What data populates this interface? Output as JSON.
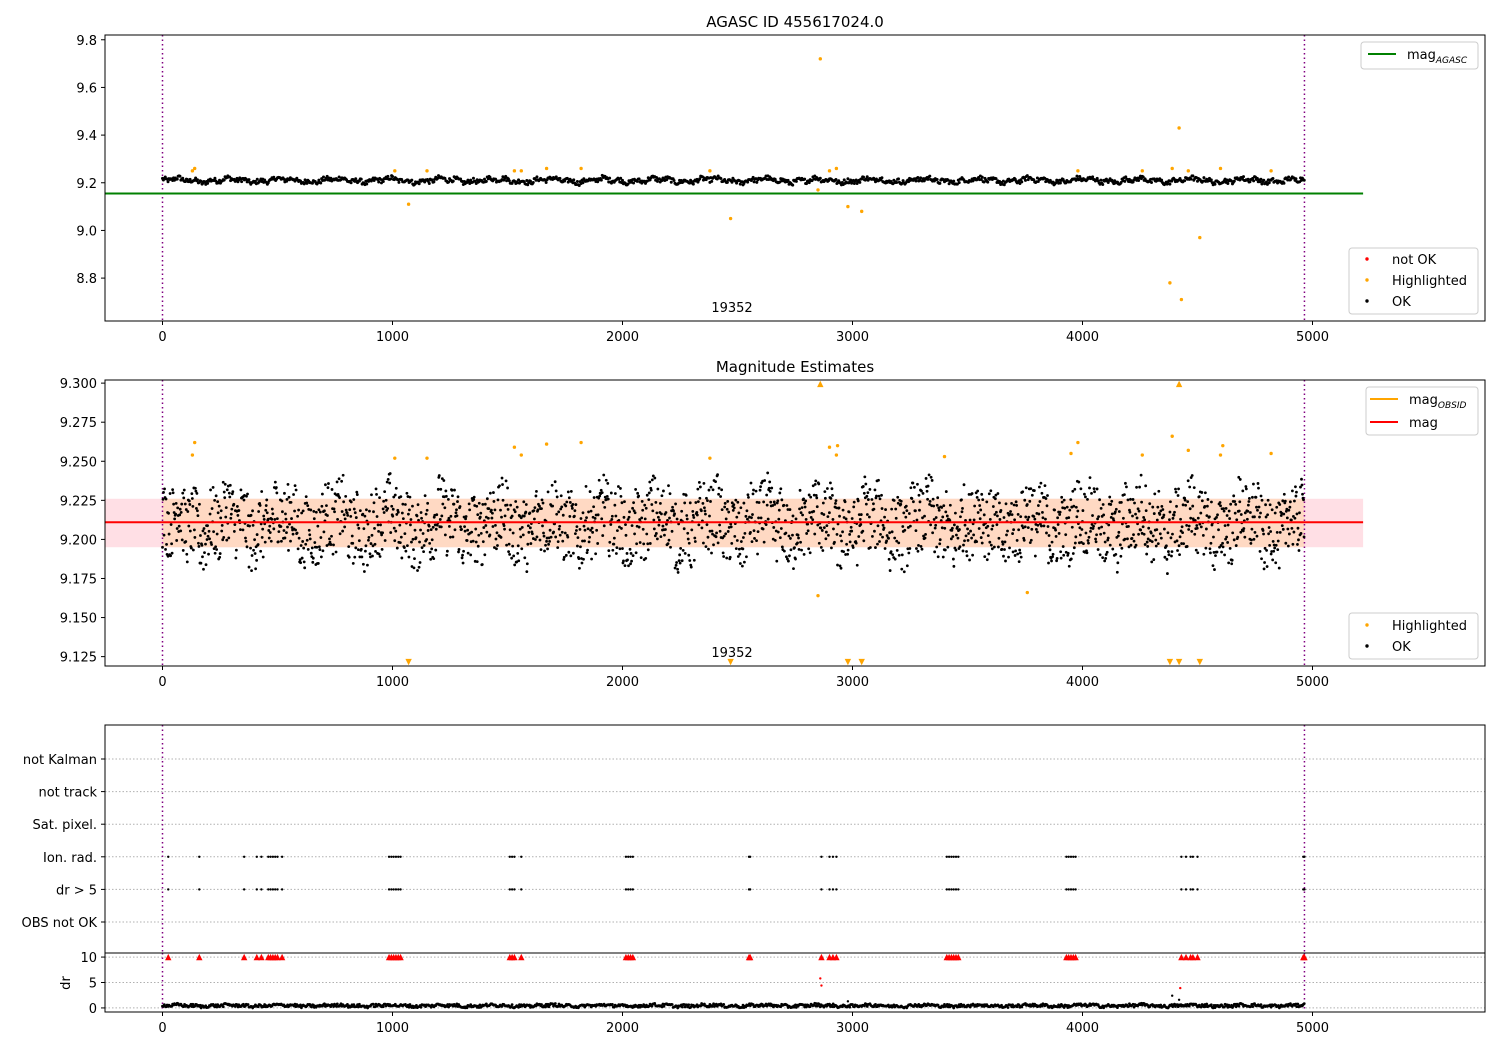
{
  "chart_data": [
    {
      "type": "scatter",
      "title": "AGASC ID 455617024.0",
      "annotation": "19352",
      "x_ticks": [
        0,
        1000,
        2000,
        3000,
        4000,
        5000
      ],
      "xlim": [
        -250,
        5750
      ],
      "ylim": [
        8.62,
        9.82
      ],
      "y_ticks": [
        "8.8",
        "9.0",
        "9.2",
        "9.4",
        "9.6",
        "9.8"
      ],
      "obs_bounds": [
        0,
        4965
      ],
      "reference_line": {
        "name": "mag",
        "subscript": "AGASC",
        "value": 9.155,
        "x_range": [
          -250,
          5220
        ],
        "color": "#008000"
      },
      "legend_top": [
        {
          "label": "mag",
          "subscript": "AGASC",
          "color": "#008000",
          "kind": "line"
        }
      ],
      "legend_bottom": [
        {
          "label": "not OK",
          "color": "#ff0000",
          "kind": "dot"
        },
        {
          "label": "Highlighted",
          "color": "#ffa500",
          "kind": "dot"
        },
        {
          "label": "OK",
          "color": "#000000",
          "kind": "dot"
        }
      ],
      "series": [
        {
          "name": "OK",
          "color": "#000000",
          "kind": "band_noise",
          "x_range": [
            0,
            4965
          ],
          "center": 9.21,
          "amplitude": 0.012,
          "jitter": 0.01
        },
        {
          "name": "Highlighted",
          "color": "#ffa500",
          "points": [
            [
              130,
              9.25
            ],
            [
              140,
              9.26
            ],
            [
              1010,
              9.25
            ],
            [
              1070,
              9.11
            ],
            [
              1150,
              9.25
            ],
            [
              1530,
              9.25
            ],
            [
              1560,
              9.25
            ],
            [
              1670,
              9.26
            ],
            [
              1820,
              9.26
            ],
            [
              2380,
              9.25
            ],
            [
              2470,
              9.05
            ],
            [
              2860,
              9.72
            ],
            [
              2850,
              9.17
            ],
            [
              2900,
              9.25
            ],
            [
              2930,
              9.26
            ],
            [
              2980,
              9.1
            ],
            [
              3040,
              9.08
            ],
            [
              3980,
              9.25
            ],
            [
              4260,
              9.25
            ],
            [
              4380,
              8.78
            ],
            [
              4390,
              9.26
            ],
            [
              4420,
              9.43
            ],
            [
              4430,
              8.71
            ],
            [
              4460,
              9.25
            ],
            [
              4510,
              8.97
            ],
            [
              4600,
              9.26
            ],
            [
              4820,
              9.25
            ]
          ]
        },
        {
          "name": "not OK",
          "color": "#ff0000",
          "points": []
        }
      ]
    },
    {
      "type": "scatter",
      "title": "Magnitude Estimates",
      "annotation": "19352",
      "x_ticks": [
        0,
        1000,
        2000,
        3000,
        4000,
        5000
      ],
      "xlim": [
        -250,
        5750
      ],
      "ylim": [
        9.119,
        9.302
      ],
      "y_ticks": [
        "9.125",
        "9.150",
        "9.175",
        "9.200",
        "9.225",
        "9.250",
        "9.275",
        "9.300"
      ],
      "obs_bounds": [
        0,
        4965
      ],
      "band": {
        "low": 9.195,
        "high": 9.226,
        "x_range": [
          -250,
          5220
        ]
      },
      "inner_band": {
        "low": 9.195,
        "high": 9.226,
        "x_range": [
          0,
          4965
        ]
      },
      "reference_line": {
        "name": "mag",
        "value": 9.211,
        "x_range": [
          -250,
          5220
        ],
        "color": "#ff0000"
      },
      "legend_top": [
        {
          "label": "mag",
          "subscript": "OBSID",
          "color": "#ffa500",
          "kind": "line"
        },
        {
          "label": "mag",
          "color": "#ff0000",
          "kind": "line"
        }
      ],
      "legend_bottom": [
        {
          "label": "Highlighted",
          "color": "#ffa500",
          "kind": "dot"
        },
        {
          "label": "OK",
          "color": "#000000",
          "kind": "dot"
        }
      ],
      "series": [
        {
          "name": "OK",
          "color": "#000000",
          "kind": "band_noise",
          "x_range": [
            0,
            4965
          ],
          "center": 9.21,
          "amplitude": 0.012,
          "jitter": 0.022
        },
        {
          "name": "Highlighted",
          "color": "#ffa500",
          "points": [
            [
              130,
              9.254
            ],
            [
              140,
              9.262
            ],
            [
              1010,
              9.252
            ],
            [
              1150,
              9.252
            ],
            [
              1530,
              9.259
            ],
            [
              1560,
              9.254
            ],
            [
              1670,
              9.261
            ],
            [
              1820,
              9.262
            ],
            [
              2380,
              9.252
            ],
            [
              2850,
              9.164
            ],
            [
              2900,
              9.259
            ],
            [
              2930,
              9.254
            ],
            [
              2935,
              9.26
            ],
            [
              3980,
              9.262
            ],
            [
              3950,
              9.255
            ],
            [
              3760,
              9.166
            ],
            [
              3400,
              9.253
            ],
            [
              4260,
              9.254
            ],
            [
              4390,
              9.266
            ],
            [
              4460,
              9.257
            ],
            [
              4600,
              9.254
            ],
            [
              4610,
              9.26
            ],
            [
              4820,
              9.255
            ]
          ]
        },
        {
          "name": "Highlighted (off-scale low)",
          "color": "#ffa500",
          "marker": "tri_down",
          "points": [
            [
              1070,
              9.1215
            ],
            [
              2470,
              9.1215
            ],
            [
              2980,
              9.1215
            ],
            [
              3040,
              9.1215
            ],
            [
              4380,
              9.1215
            ],
            [
              4420,
              9.1215
            ],
            [
              4510,
              9.1215
            ]
          ]
        },
        {
          "name": "Highlighted (off-scale high)",
          "color": "#ffa500",
          "marker": "tri_up",
          "points": [
            [
              2860,
              9.2995
            ],
            [
              4420,
              9.2995
            ]
          ]
        }
      ]
    },
    {
      "type": "scatter",
      "title": "",
      "x_ticks": [
        0,
        1000,
        2000,
        3000,
        4000,
        5000
      ],
      "xlim": [
        -250,
        5750
      ],
      "obs_bounds": [
        0,
        4965
      ],
      "flag_rows": [
        "not Kalman",
        "not track",
        "Sat. pixel.",
        "Ion. rad.",
        "dr > 5",
        "OBS not OK"
      ],
      "flag_series": [
        {
          "row": "Ion. rad.",
          "color": "#000000",
          "x": [
            25,
            160,
            355,
            410,
            430,
            460,
            470,
            480,
            490,
            500,
            520,
            985,
            995,
            1005,
            1015,
            1025,
            1035,
            1510,
            1520,
            1530,
            1560,
            2015,
            2025,
            2035,
            2045,
            2550,
            2555,
            2865,
            2900,
            2915,
            2930,
            3410,
            3420,
            3430,
            3440,
            3450,
            3460,
            3930,
            3940,
            3950,
            3960,
            3970,
            4430,
            4450,
            4470,
            4480,
            4500,
            4960,
            4965
          ]
        },
        {
          "row": "dr > 5",
          "color": "#000000",
          "x": [
            25,
            160,
            355,
            410,
            430,
            460,
            470,
            480,
            490,
            500,
            520,
            985,
            995,
            1005,
            1015,
            1025,
            1035,
            1510,
            1520,
            1530,
            1560,
            2015,
            2025,
            2035,
            2045,
            2550,
            2555,
            2865,
            2900,
            2915,
            2930,
            3410,
            3420,
            3430,
            3440,
            3450,
            3460,
            3930,
            3940,
            3950,
            3960,
            3970,
            4430,
            4450,
            4470,
            4480,
            4500,
            4960,
            4965
          ]
        }
      ],
      "dr_panel": {
        "ylabel": "dr",
        "ylim": [
          -0.8,
          10.8
        ],
        "y_ticks": [
          "0",
          "5",
          "10"
        ],
        "ok_series": {
          "name": "OK",
          "color": "#000000",
          "kind": "band_noise",
          "x_range": [
            0,
            4965
          ],
          "center": 0.45,
          "amplitude": 0.2,
          "jitter": 0.3
        },
        "clipped_series": {
          "name": "not OK",
          "color": "#ff0000",
          "marker": "tri_up",
          "value": 10,
          "x": [
            25,
            160,
            355,
            410,
            430,
            460,
            470,
            480,
            490,
            500,
            520,
            985,
            995,
            1005,
            1015,
            1025,
            1035,
            1510,
            1520,
            1530,
            1560,
            2015,
            2025,
            2035,
            2045,
            2550,
            2555,
            2865,
            2900,
            2915,
            2930,
            3410,
            3420,
            3430,
            3440,
            3450,
            3460,
            3930,
            3940,
            3950,
            3960,
            3970,
            4430,
            4450,
            4470,
            4480,
            4500,
            4960,
            4965
          ]
        },
        "outliers": [
          {
            "color": "#ff0000",
            "points": [
              [
                2860,
                5.8
              ],
              [
                2865,
                4.4
              ],
              [
                4425,
                3.9
              ]
            ]
          },
          {
            "color": "#000000",
            "points": [
              [
                4390,
                2.4
              ],
              [
                4420,
                1.6
              ],
              [
                2980,
                1.3
              ]
            ]
          }
        ]
      }
    }
  ]
}
